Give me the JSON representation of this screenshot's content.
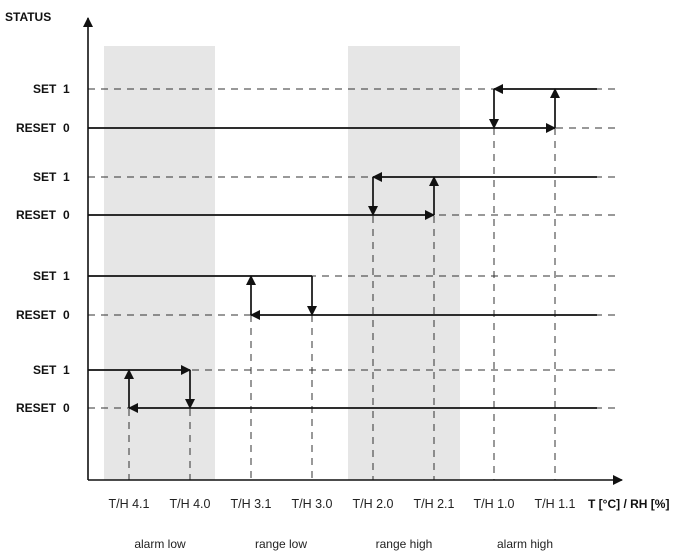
{
  "y_axis": {
    "label": "STATUS"
  },
  "x_axis": {
    "label": "T [°C] / RH [%]",
    "ticks": [
      "T/H 4.1",
      "T/H 4.0",
      "T/H 3.1",
      "T/H 3.0",
      "T/H 2.0",
      "T/H 2.1",
      "T/H 1.0",
      "T/H 1.1"
    ]
  },
  "zones": [
    {
      "label": "alarm low",
      "shaded": true
    },
    {
      "label": "range low",
      "shaded": false
    },
    {
      "label": "range high",
      "shaded": true
    },
    {
      "label": "alarm high",
      "shaded": false
    }
  ],
  "groups": [
    {
      "set_label": "SET",
      "set_value": "1",
      "reset_label": "RESET",
      "reset_value": "0"
    },
    {
      "set_label": "SET",
      "set_value": "1",
      "reset_label": "RESET",
      "reset_value": "0"
    },
    {
      "set_label": "SET",
      "set_value": "1",
      "reset_label": "RESET",
      "reset_value": "0"
    },
    {
      "set_label": "SET",
      "set_value": "1",
      "reset_label": "RESET",
      "reset_value": "0"
    }
  ],
  "colors": {
    "shade": "#e6e6e6",
    "line": "#111111"
  }
}
